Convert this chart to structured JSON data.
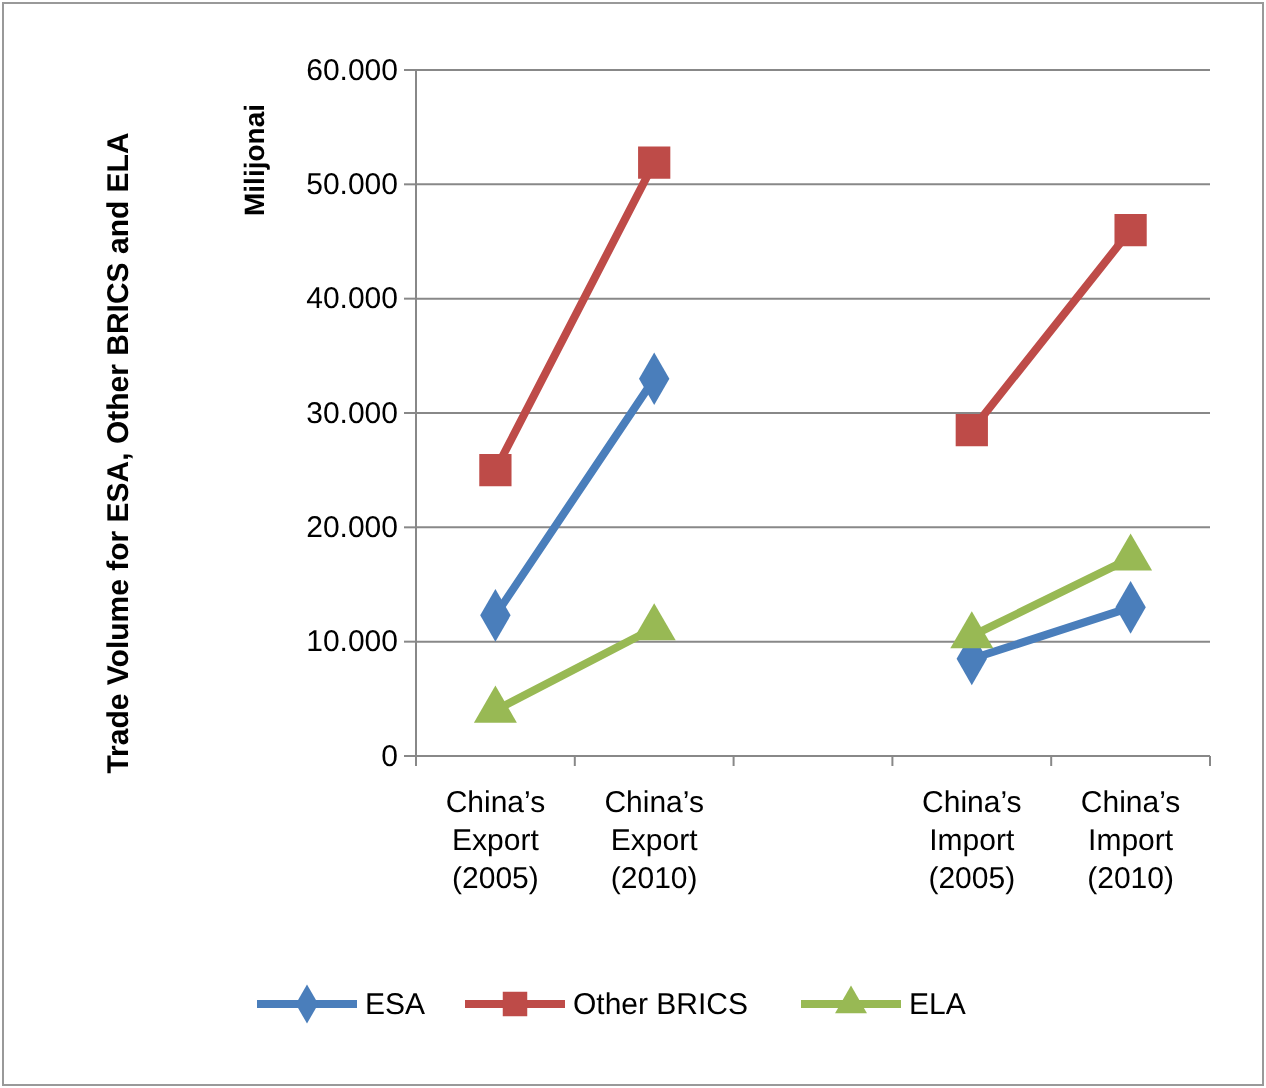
{
  "chart_data": {
    "type": "line",
    "ylabel": "Milijonai",
    "annotations": [
      "Trade Volume for ESA, Other BRICS and ELA"
    ],
    "categories": [
      "China’s Export (2005)",
      "China’s Export (2010)",
      null,
      "China’s Import (2005)",
      "China’s Import (2010)"
    ],
    "series": [
      {
        "name": "ESA",
        "color": "#4a7ebb",
        "marker": "diamond",
        "values": [
          12300,
          33000,
          null,
          8500,
          13000
        ]
      },
      {
        "name": "Other BRICS",
        "color": "#be4b48",
        "marker": "square",
        "values": [
          25000,
          51900,
          null,
          28500,
          46000
        ]
      },
      {
        "name": "ELA",
        "color": "#98b954",
        "marker": "triangle",
        "values": [
          4000,
          11200,
          null,
          10500,
          17300
        ]
      }
    ],
    "ylim": [
      0,
      60000
    ],
    "yticks": [
      0,
      {
        "value": 10000,
        "label": "10.000"
      },
      {
        "value": 20000,
        "label": "20.000"
      },
      {
        "value": 30000,
        "label": "30.000"
      },
      {
        "value": 40000,
        "label": "40.000"
      },
      {
        "value": 50000,
        "label": "50.000"
      },
      {
        "value": 60000,
        "label": "60.000"
      }
    ],
    "grid": "y",
    "legend": "bottom",
    "line_style": "solid"
  }
}
